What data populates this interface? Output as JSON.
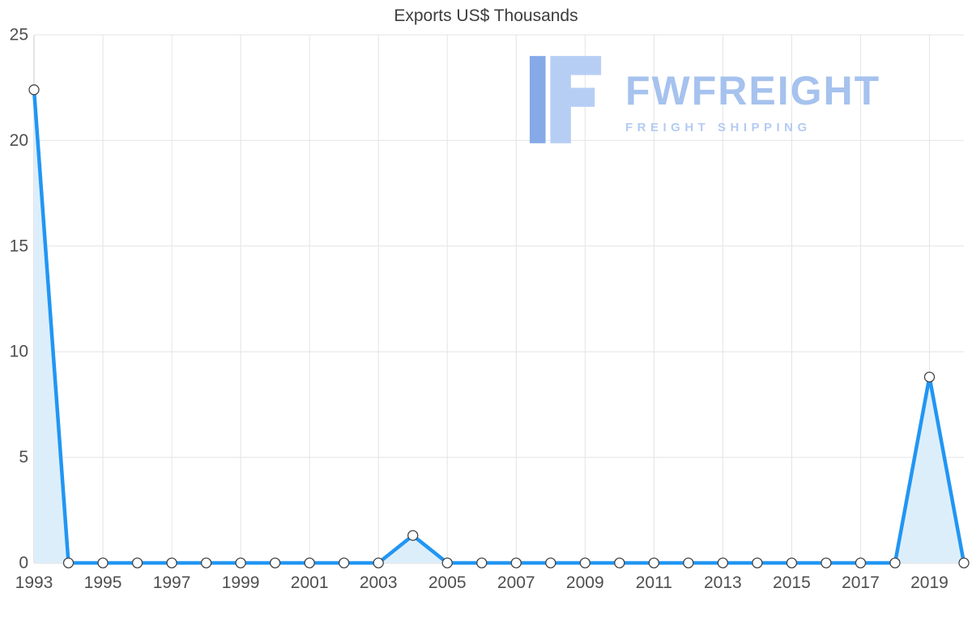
{
  "chart_data": {
    "type": "line",
    "title": "Exports US$ Thousands",
    "xlabel": "",
    "ylabel": "",
    "x": [
      1993,
      1994,
      1995,
      1996,
      1997,
      1998,
      1999,
      2000,
      2001,
      2002,
      2003,
      2004,
      2005,
      2006,
      2007,
      2008,
      2009,
      2010,
      2011,
      2012,
      2013,
      2014,
      2015,
      2016,
      2017,
      2018,
      2019,
      2020
    ],
    "series": [
      {
        "name": "Exports US$ Thousands",
        "values": [
          22.4,
          0,
          0,
          0,
          0,
          0,
          0,
          0,
          0,
          0,
          0,
          1.3,
          0,
          0,
          0,
          0,
          0,
          0,
          0,
          0,
          0,
          0,
          0,
          0,
          0,
          0,
          8.8,
          0
        ]
      }
    ],
    "ylim": [
      0,
      25
    ],
    "yticks": [
      0,
      5,
      10,
      15,
      20,
      25
    ],
    "xtick_labels": [
      1993,
      1995,
      1997,
      1999,
      2001,
      2003,
      2005,
      2007,
      2009,
      2011,
      2013,
      2015,
      2017,
      2019
    ],
    "grid": true,
    "legend": "none",
    "marker": "circle",
    "area_fill": true,
    "colors": {
      "line": "#2196f3",
      "area": "#ddeefb",
      "marker_fill": "#ffffff",
      "marker_stroke": "#444444",
      "grid": "#e4e4e4",
      "axis": "#c9c9c9",
      "tick_text": "#4f4f4f",
      "title_text": "#3d3d3d",
      "watermark_text": "#a6c2ee",
      "watermark_tagline": "#b4cbf2",
      "logo_dark": "#86a9e8",
      "logo_light": "#b7cef4"
    }
  },
  "watermark": {
    "brand": "FWFREIGHT",
    "tagline": "FREIGHT SHIPPING"
  }
}
